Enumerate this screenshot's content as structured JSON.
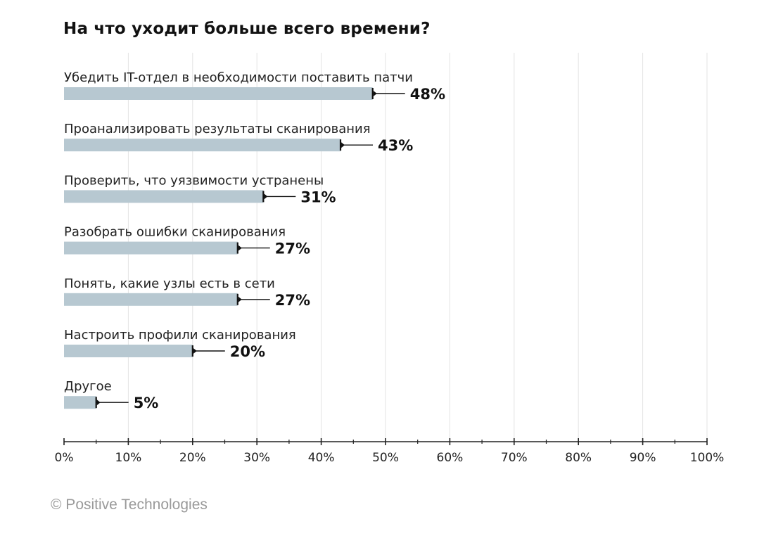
{
  "chart_data": {
    "type": "bar",
    "orientation": "horizontal",
    "title": "На что уходит больше всего времени?",
    "categories": [
      "Убедить IT-отдел в необходимости поставить патчи",
      "Проанализировать результаты сканирования",
      "Проверить, что уязвимости устранены",
      "Разобрать ошибки сканирования",
      "Понять, какие узлы есть в сети",
      "Настроить профили сканирования",
      "Другое"
    ],
    "values": [
      48,
      43,
      31,
      27,
      27,
      20,
      5
    ],
    "value_labels": [
      "48%",
      "43%",
      "31%",
      "27%",
      "27%",
      "20%",
      "5%"
    ],
    "xlim": [
      0,
      100
    ],
    "xticks": [
      0,
      10,
      20,
      30,
      40,
      50,
      60,
      70,
      80,
      90,
      100
    ],
    "xtick_labels": [
      "0%",
      "10%",
      "20%",
      "30%",
      "40%",
      "50%",
      "60%",
      "70%",
      "80%",
      "90%",
      "100%"
    ],
    "grid": true,
    "legend": "none",
    "colors": {
      "bar": "#b7c8d1",
      "grid": "#e3e3e3",
      "axis": "#222222",
      "marker": "#111111"
    }
  },
  "footer": {
    "copyright": "© Positive Technologies"
  }
}
